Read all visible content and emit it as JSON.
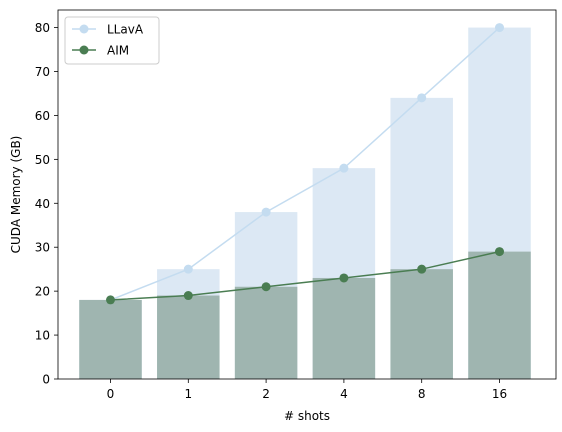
{
  "chart_data": {
    "type": "bar",
    "categories": [
      "0",
      "1",
      "2",
      "4",
      "8",
      "16"
    ],
    "xlabel": "# shots",
    "ylabel": "CUDA Memory (GB)",
    "ylim": [
      0,
      84
    ],
    "yticks": [
      0,
      10,
      20,
      30,
      40,
      50,
      60,
      70,
      80
    ],
    "grid": false,
    "legend_position": "top-left",
    "series": [
      {
        "name": "LLavA",
        "values": [
          18,
          25,
          38,
          48,
          64,
          80
        ],
        "bar_color": "#dce8f4",
        "line_color": "#c4dcf0",
        "marker_color": "#c4dcf0"
      },
      {
        "name": "AIM",
        "values": [
          18,
          19,
          21,
          23,
          25,
          29
        ],
        "bar_color": "#9fb5b0",
        "line_color": "#4a7d52",
        "marker_color": "#4a7d52"
      }
    ]
  }
}
